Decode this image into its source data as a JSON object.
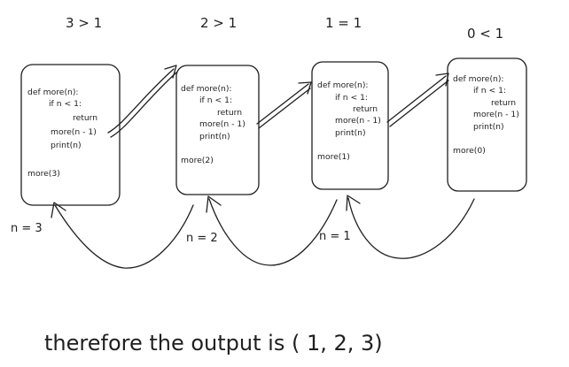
{
  "frames": [
    {
      "comparison": "3 > 1",
      "code": [
        "def more(n):",
        "if n < 1:",
        "return",
        "more(n - 1)",
        "print(n)",
        "",
        "more(3)"
      ]
    },
    {
      "comparison": "2 > 1",
      "code": [
        "def more(n):",
        "if n < 1:",
        "return",
        "more(n - 1)",
        "print(n)",
        "",
        "more(2)"
      ]
    },
    {
      "comparison": "1 = 1",
      "code": [
        "def more(n):",
        "if n < 1:",
        "return",
        "more(n - 1)",
        "print(n)",
        "",
        "more(1)"
      ]
    },
    {
      "comparison": "0 < 1",
      "code": [
        "def more(n):",
        "if n < 1:",
        "return",
        "more(n - 1)",
        "print(n)",
        "",
        "more(0)"
      ]
    }
  ],
  "return_labels": [
    "n = 3",
    "n = 2",
    "n = 1"
  ],
  "conclusion": "therefore the output is ( 1, 2, 3)",
  "colors": {
    "ink": "#1f1f1f",
    "background": "#ffffff"
  }
}
